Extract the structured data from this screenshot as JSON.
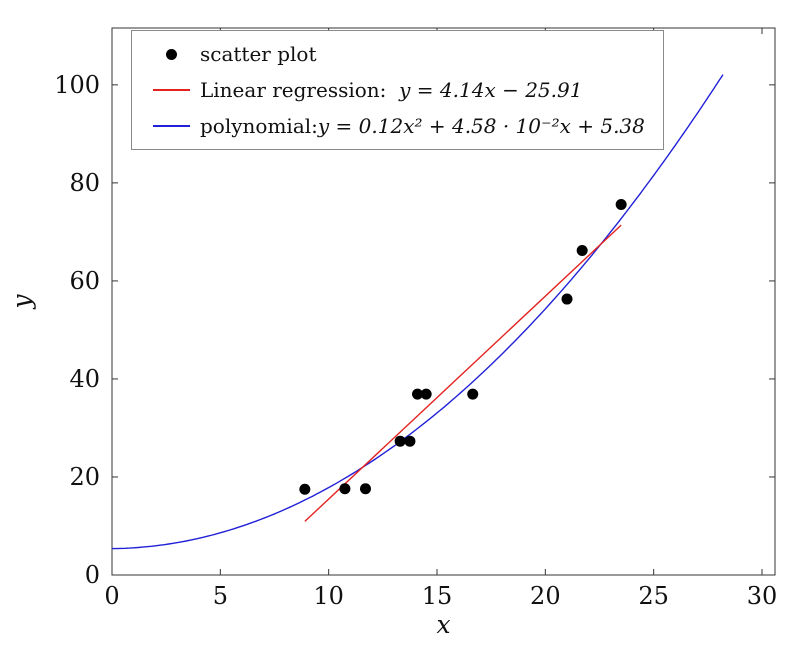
{
  "chart_data": {
    "type": "scatter",
    "title": "",
    "xlabel": "x",
    "ylabel": "y",
    "xlim": [
      0,
      30.6
    ],
    "ylim": [
      0,
      111.6
    ],
    "xticks": [
      0,
      5,
      10,
      15,
      20,
      25,
      30
    ],
    "yticks": [
      0,
      20,
      40,
      60,
      80,
      100
    ],
    "grid": false,
    "legend_position": "top-left",
    "colors": {
      "scatter": "#000000",
      "linear": "#e42320",
      "polynomial": "#2121d8",
      "frame": "#333333"
    },
    "scatter": [
      [
        8.9,
        17.5
      ],
      [
        10.75,
        17.6
      ],
      [
        11.7,
        17.6
      ],
      [
        13.3,
        27.3
      ],
      [
        13.75,
        27.3
      ],
      [
        14.1,
        36.9
      ],
      [
        14.5,
        36.9
      ],
      [
        16.65,
        36.9
      ],
      [
        21.0,
        56.3
      ],
      [
        21.7,
        66.2
      ],
      [
        23.5,
        75.6
      ]
    ],
    "series": {
      "linear": {
        "name": "Linear regression",
        "equation": "y = 4.14x − 25.91",
        "slope": 4.14,
        "intercept": -25.91,
        "x_range": [
          8.9,
          23.5
        ]
      },
      "polynomial": {
        "name": "polynomial",
        "equation": "y = 0.12x² + 4.58 · 10⁻²x + 5.38",
        "a": 0.12,
        "b": 0.0458,
        "c": 5.38,
        "x_range": [
          0,
          28.2
        ]
      }
    },
    "legend": [
      {
        "marker": "dot",
        "prefix": "scatter plot",
        "math": ""
      },
      {
        "marker": "line",
        "prefix": "Linear regression:  ",
        "math": "y = 4.14x − 25.91"
      },
      {
        "marker": "line",
        "prefix": "polynomial:",
        "math": "y = 0.12x² + 4.58 · 10⁻²x + 5.38"
      }
    ]
  }
}
